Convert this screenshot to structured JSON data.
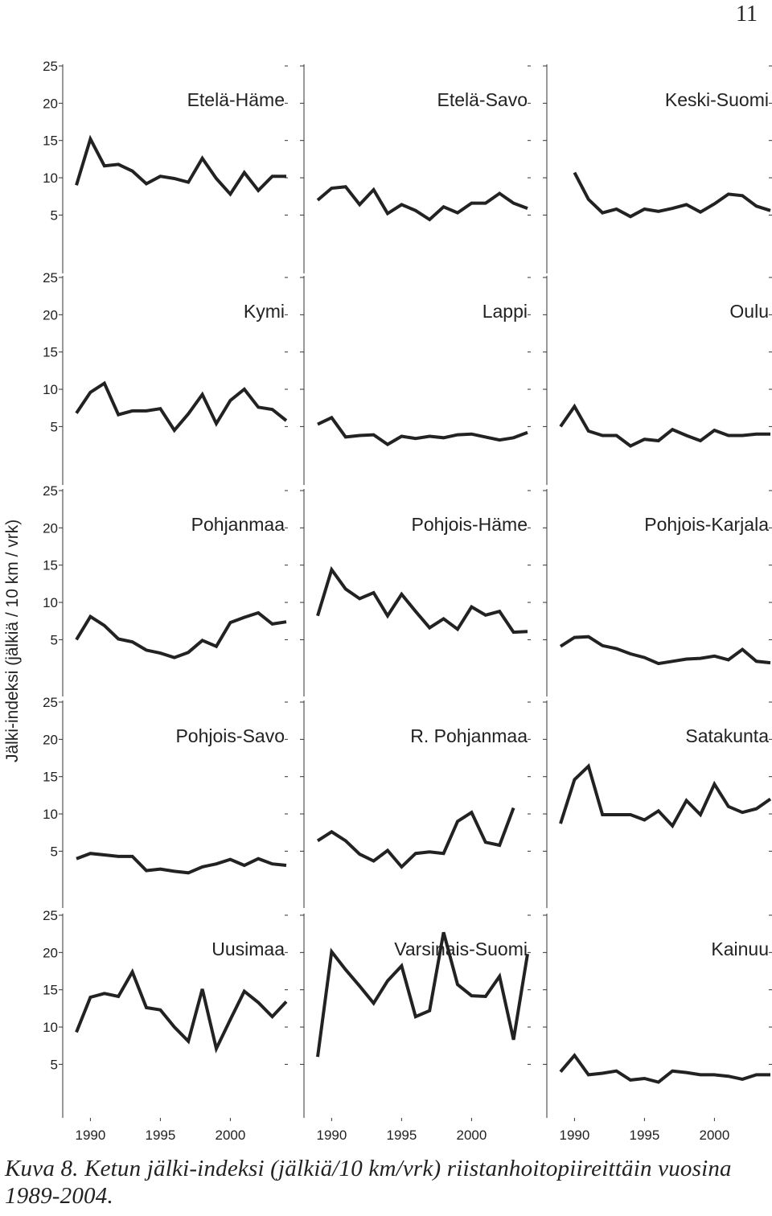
{
  "page_number": "11",
  "caption": "Kuva 8. Ketun jälki-indeksi (jälkiä/10 km/vrk) riistanhoitopiireittäin vuosina 1989-2004.",
  "chart_data": {
    "type": "line",
    "layout": "small-multiples 5x3",
    "ylabel": "Jälki-indeksi (jälkiä / 10 km / vrk)",
    "x": [
      1989,
      1990,
      1991,
      1992,
      1993,
      1994,
      1995,
      1996,
      1997,
      1998,
      1999,
      2000,
      2001,
      2002,
      2003,
      2004
    ],
    "xticks": [
      1990,
      1995,
      2000
    ],
    "xtick_labels": [
      "1990",
      "1995",
      "2000"
    ],
    "yticks": [
      5,
      10,
      15,
      20,
      25
    ],
    "ytick_labels": [
      "5",
      "10",
      "15",
      "20",
      "25"
    ],
    "ylim": [
      0,
      25
    ],
    "grid": false,
    "line_color": "#222222",
    "panels": [
      {
        "name": "Etelä-Häme",
        "values": [
          9,
          15.2,
          11.6,
          11.8,
          10.9,
          9.2,
          10.2,
          9.9,
          9.4,
          12.6,
          9.9,
          7.8,
          10.7,
          8.3,
          10.2,
          10.2
        ]
      },
      {
        "name": "Etelä-Savo",
        "values": [
          7,
          8.6,
          8.8,
          6.4,
          8.4,
          5.2,
          6.4,
          5.6,
          4.4,
          6.1,
          5.3,
          6.6,
          6.6,
          7.9,
          6.6,
          5.9
        ]
      },
      {
        "name": "Keski-Suomi",
        "values": [
          null,
          10.7,
          7.1,
          5.3,
          5.8,
          4.8,
          5.8,
          5.5,
          5.9,
          6.4,
          5.4,
          6.5,
          7.8,
          7.6,
          6.2,
          5.6
        ]
      },
      {
        "name": "Kymi",
        "values": [
          6.8,
          9.6,
          10.8,
          6.6,
          7.1,
          7.1,
          7.4,
          4.5,
          6.7,
          9.3,
          5.4,
          8.5,
          10,
          7.6,
          7.3,
          5.8
        ]
      },
      {
        "name": "Lappi",
        "values": [
          5.3,
          6.2,
          3.6,
          3.8,
          3.9,
          2.6,
          3.7,
          3.4,
          3.7,
          3.5,
          3.9,
          4,
          3.6,
          3.2,
          3.5,
          4.2
        ]
      },
      {
        "name": "Oulu",
        "values": [
          5,
          7.7,
          4.4,
          3.8,
          3.8,
          2.4,
          3.3,
          3.1,
          4.6,
          3.8,
          3.1,
          4.5,
          3.8,
          3.8,
          4,
          4
        ]
      },
      {
        "name": "Pohjanmaa",
        "values": [
          5,
          8.1,
          6.9,
          5.1,
          4.7,
          3.6,
          3.2,
          2.6,
          3.3,
          4.9,
          4.1,
          7.3,
          8,
          8.6,
          7.1,
          7.4
        ]
      },
      {
        "name": "Pohjois-Häme",
        "values": [
          8.2,
          14.4,
          11.8,
          10.5,
          11.3,
          8.2,
          11.1,
          8.8,
          6.6,
          7.8,
          6.4,
          9.4,
          8.3,
          8.8,
          6,
          6.1
        ]
      },
      {
        "name": "Pohjois-Karjala",
        "values": [
          4.1,
          5.3,
          5.4,
          4.2,
          3.8,
          3.1,
          2.6,
          1.8,
          2.1,
          2.4,
          2.5,
          2.8,
          2.3,
          3.7,
          2.1,
          1.9
        ]
      },
      {
        "name": "Pohjois-Savo",
        "values": [
          4,
          4.7,
          4.5,
          4.3,
          4.3,
          2.4,
          2.6,
          2.3,
          2.1,
          2.9,
          3.3,
          3.9,
          3.1,
          4,
          3.3,
          3.1
        ]
      },
      {
        "name": "R. Pohjanmaa",
        "values": [
          6.4,
          7.6,
          6.4,
          4.6,
          3.7,
          5.1,
          2.9,
          4.7,
          4.9,
          4.7,
          9,
          10.2,
          6.2,
          5.8,
          10.8,
          null
        ]
      },
      {
        "name": "Satakunta",
        "values": [
          8.7,
          14.6,
          16.4,
          9.9,
          9.9,
          9.9,
          9.2,
          10.4,
          8.4,
          11.8,
          9.9,
          14,
          11,
          10.2,
          10.7,
          12
        ]
      },
      {
        "name": "Uusimaa",
        "values": [
          9.3,
          14,
          14.5,
          14.1,
          17.4,
          12.6,
          12.3,
          10,
          8.1,
          15.1,
          7.1,
          11,
          14.8,
          13.3,
          11.4,
          13.4
        ]
      },
      {
        "name": "Varsinais-Suomi",
        "values": [
          6,
          20.1,
          17.7,
          15.5,
          13.2,
          16.2,
          18.2,
          11.4,
          12.2,
          22.7,
          15.7,
          14.2,
          14.1,
          16.8,
          8.3,
          19.8
        ]
      },
      {
        "name": "Kainuu",
        "values": [
          4,
          6.2,
          3.6,
          3.8,
          4.1,
          2.9,
          3.1,
          2.6,
          4.1,
          3.9,
          3.6,
          3.6,
          3.4,
          3,
          3.6,
          3.6
        ]
      }
    ]
  }
}
